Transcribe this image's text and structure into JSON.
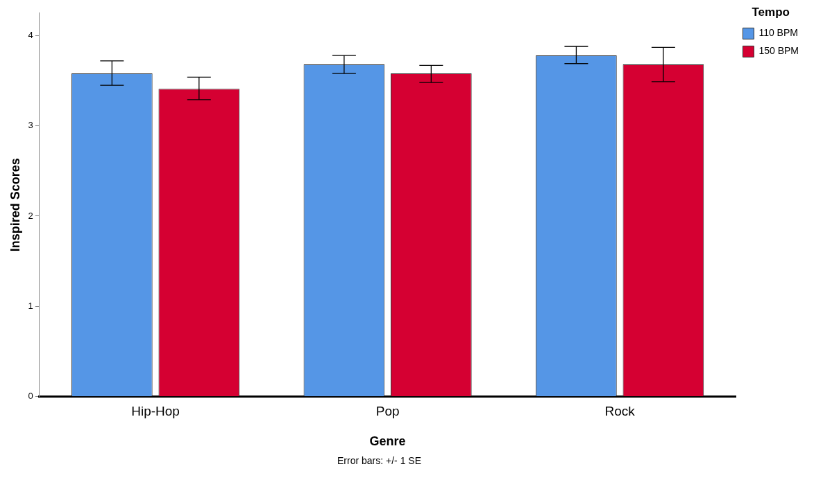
{
  "chart_data": {
    "type": "bar",
    "xlabel": "Genre",
    "ylabel": "Inspired Scores",
    "legend_title": "Tempo",
    "categories": [
      "Hip-Hop",
      "Pop",
      "Rock"
    ],
    "series": [
      {
        "name": "110 BPM",
        "color": "#5596e6",
        "values": [
          3.58,
          3.68,
          3.78
        ],
        "errors": [
          [
            3.45,
            3.72
          ],
          [
            3.58,
            3.78
          ],
          [
            3.69,
            3.88
          ]
        ]
      },
      {
        "name": "150 BPM",
        "color": "#d50032",
        "values": [
          3.41,
          3.58,
          3.68
        ],
        "errors": [
          [
            3.29,
            3.54
          ],
          [
            3.48,
            3.67
          ],
          [
            3.49,
            3.87
          ]
        ]
      }
    ],
    "ylim": [
      0,
      4.25
    ],
    "yticks": [
      0,
      1,
      2,
      3,
      4
    ],
    "legend": "top right",
    "annotations": [
      "Error bars: +/- 1 SE"
    ]
  }
}
